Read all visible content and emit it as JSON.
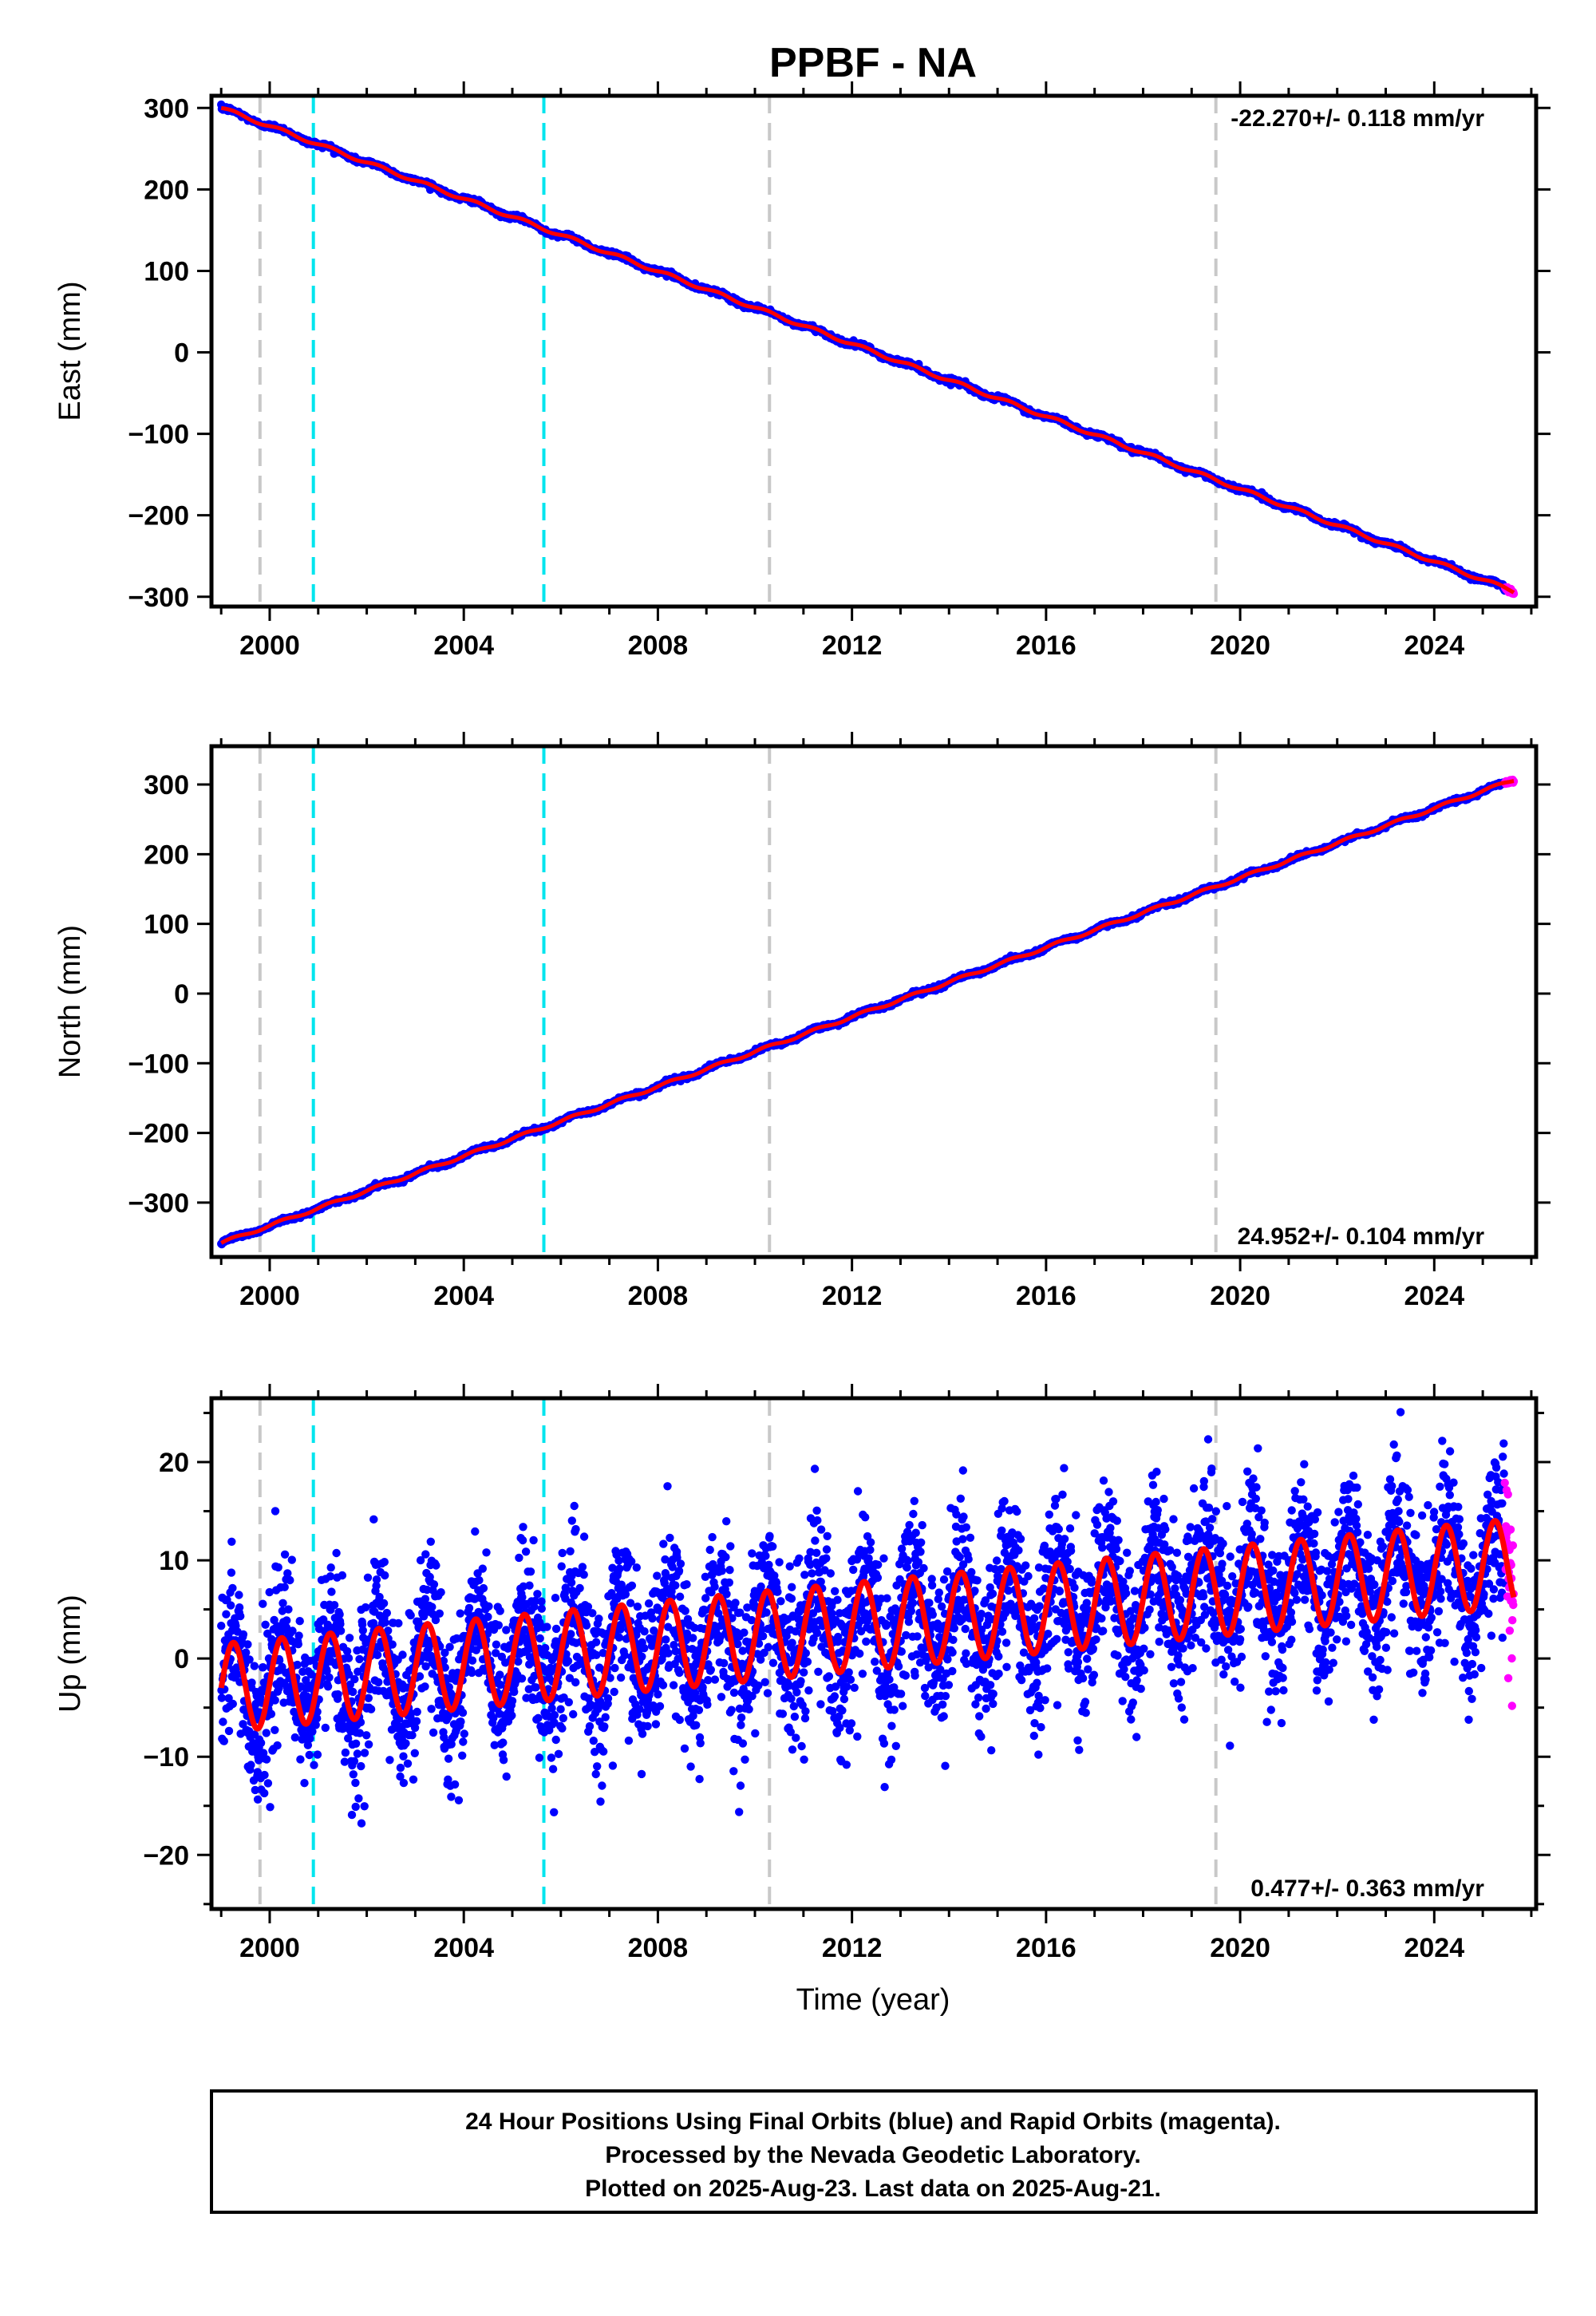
{
  "title": "PPBF - NA",
  "xlabel": "Time (year)",
  "x_ticks": [
    2000,
    2004,
    2008,
    2012,
    2016,
    2020,
    2024
  ],
  "caption": {
    "line1": "24 Hour Positions Using Final Orbits (blue) and Rapid Orbits (magenta).",
    "line2": "Processed by the Nevada Geodetic Laboratory.",
    "line3": "Plotted on 2025-Aug-23. Last data on 2025-Aug-21."
  },
  "colors": {
    "final_orbits": "#0000ff",
    "rapid_orbits": "#ff00ff",
    "model": "#ff0000",
    "equipment_change": "#c8c8c8",
    "earthquake": "#00e5ee"
  },
  "chart_data": [
    {
      "type": "scatter",
      "ylabel": "East (mm)",
      "xlim": [
        1998.8,
        2026.1
      ],
      "ylim": [
        -312,
        315
      ],
      "y_ticks": [
        300,
        200,
        100,
        0,
        -100,
        -200,
        -300
      ],
      "rate_text": "-22.270+/- 0.118 mm/yr",
      "rate_position": "top-right",
      "x_start": 1999.0,
      "x_end": 2025.64,
      "trend": {
        "slope": -22.27,
        "intercept_at_x_start": 300
      },
      "seasonal_amplitude": 2,
      "noise_sd": 1.5,
      "rapid_from": 2025.45,
      "equipment_change_lines": [
        1999.8,
        2010.3,
        2019.5
      ],
      "earthquake_lines": [
        2000.9,
        2005.65
      ]
    },
    {
      "type": "scatter",
      "ylabel": "North (mm)",
      "xlim": [
        1998.8,
        2026.1
      ],
      "ylim": [
        -378,
        355
      ],
      "y_ticks": [
        300,
        200,
        100,
        0,
        -100,
        -200,
        -300
      ],
      "rate_text": "24.952+/- 0.104 mm/yr",
      "rate_position": "bottom-right",
      "x_start": 1999.0,
      "x_end": 2025.64,
      "trend": {
        "slope": 24.952,
        "intercept_at_x_start": -358
      },
      "seasonal_amplitude": 2,
      "noise_sd": 1.5,
      "rapid_from": 2025.45,
      "equipment_change_lines": [
        1999.8,
        2010.3,
        2019.5
      ],
      "earthquake_lines": [
        2000.9,
        2005.65
      ]
    },
    {
      "type": "scatter",
      "ylabel": "Up (mm)",
      "xlim": [
        1998.8,
        2026.1
      ],
      "ylim": [
        -25.5,
        26.5
      ],
      "y_ticks": [
        20,
        10,
        0,
        -10,
        -20
      ],
      "rate_text": "0.477+/- 0.363 mm/yr",
      "rate_position": "bottom-right",
      "x_start": 1999.0,
      "x_end": 2025.64,
      "trend": {
        "slope": 0.477,
        "intercept_at_x_start": -3
      },
      "seasonal_amplitude": 4.5,
      "noise_sd": 4,
      "rapid_from": 2025.45,
      "equipment_change_lines": [
        1999.8,
        2010.3,
        2019.5
      ],
      "earthquake_lines": [
        2000.9,
        2005.65
      ]
    }
  ]
}
